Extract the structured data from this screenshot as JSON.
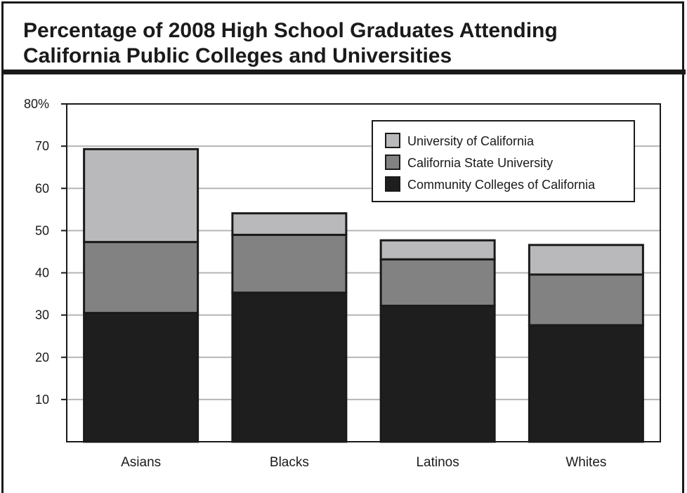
{
  "chart_data": {
    "type": "bar",
    "stacked": true,
    "title_lines": [
      "Percentage of 2008 High School Graduates Attending",
      "California Public Colleges and Universities"
    ],
    "categories": [
      "Asians",
      "Blacks",
      "Latinos",
      "Whites"
    ],
    "series": [
      {
        "name": "Community Colleges of California",
        "color": "#1e1e1e",
        "values": [
          30.5,
          35.3,
          32.2,
          27.6
        ]
      },
      {
        "name": "California State University",
        "color": "#828282",
        "values": [
          16.8,
          13.7,
          11.0,
          12.0
        ]
      },
      {
        "name": "University of California",
        "color": "#b9b9bb",
        "values": [
          22.0,
          5.1,
          4.5,
          7.0
        ]
      }
    ],
    "ylim": [
      0,
      80
    ],
    "y_ticks": [
      10,
      20,
      30,
      40,
      50,
      60,
      70,
      80
    ],
    "y_tick_labels": [
      "10",
      "20",
      "30",
      "40",
      "50",
      "60",
      "70",
      "80%"
    ],
    "xlabel": "",
    "ylabel": "",
    "grid": true,
    "legend_position": "top-right",
    "legend_order": [
      "University of California",
      "California State University",
      "Community Colleges of California"
    ]
  }
}
